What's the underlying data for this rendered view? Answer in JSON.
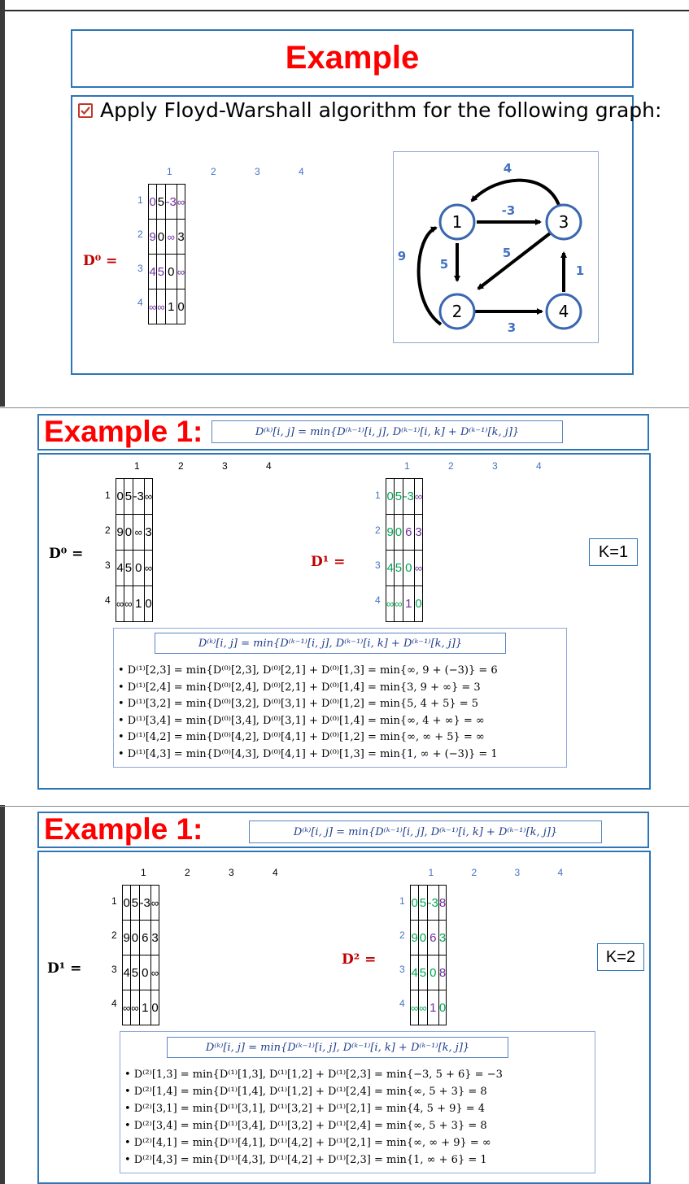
{
  "slide1": {
    "title": "Example",
    "task_text": "Apply Floyd-Warshall algorithm for the following graph:",
    "matrix_label": "D⁰ =",
    "col_labels": [
      "1",
      "2",
      "3",
      "4"
    ],
    "row_labels": [
      "1",
      "2",
      "3",
      "4"
    ],
    "matrix": [
      [
        "0",
        "5",
        "-3",
        "∞"
      ],
      [
        "9",
        "0",
        "∞",
        "3"
      ],
      [
        "4",
        "5",
        "0",
        "∞"
      ],
      [
        "∞",
        "∞",
        "1",
        "0"
      ]
    ],
    "graph": {
      "nodes": [
        "1",
        "2",
        "3",
        "4"
      ],
      "edges": [
        {
          "from": "3",
          "to": "1",
          "weight": "4"
        },
        {
          "from": "1",
          "to": "3",
          "weight": "-3"
        },
        {
          "from": "2",
          "to": "1",
          "weight": "9"
        },
        {
          "from": "1",
          "to": "2",
          "weight": "5"
        },
        {
          "from": "3",
          "to": "2",
          "weight": "5"
        },
        {
          "from": "4",
          "to": "3",
          "weight": "1"
        },
        {
          "from": "2",
          "to": "4",
          "weight": "3"
        }
      ]
    }
  },
  "formula": "D⁽ᵏ⁾[i, j] = min{D⁽ᵏ⁻¹⁾[i, j], D⁽ᵏ⁻¹⁾[i, k] + D⁽ᵏ⁻¹⁾[k, j]}",
  "slide2": {
    "title": "Example 1:",
    "left_label": "D⁰ =",
    "right_label": "D¹ =",
    "k_label": "K=1",
    "left_matrix": [
      [
        "0",
        "5",
        "-3",
        "∞"
      ],
      [
        "9",
        "0",
        "∞",
        "3"
      ],
      [
        "4",
        "5",
        "0",
        "∞"
      ],
      [
        "∞",
        "∞",
        "1",
        "0"
      ]
    ],
    "right_matrix": [
      [
        "0",
        "5",
        "-3",
        "∞"
      ],
      [
        "9",
        "0",
        "6",
        "3"
      ],
      [
        "4",
        "5",
        "0",
        "∞"
      ],
      [
        "∞",
        "∞",
        "1",
        "0"
      ]
    ],
    "steps": [
      "D⁽¹⁾[2,3] = min{D⁽⁰⁾[2,3], D⁽⁰⁾[2,1] + D⁽⁰⁾[1,3] = min{∞, 9 + (−3)} = 6",
      "D⁽¹⁾[2,4] = min{D⁽⁰⁾[2,4], D⁽⁰⁾[2,1] + D⁽⁰⁾[1,4] = min{3, 9 + ∞} = 3",
      "D⁽¹⁾[3,2] = min{D⁽⁰⁾[3,2], D⁽⁰⁾[3,1] + D⁽⁰⁾[1,2] = min{5, 4 + 5} = 5",
      "D⁽¹⁾[3,4] = min{D⁽⁰⁾[3,4], D⁽⁰⁾[3,1] + D⁽⁰⁾[1,4] = min{∞, 4 + ∞} = ∞",
      "D⁽¹⁾[4,2] = min{D⁽⁰⁾[4,2], D⁽⁰⁾[4,1] + D⁽⁰⁾[1,2] = min{∞, ∞ + 5} = ∞",
      "D⁽¹⁾[4,3] = min{D⁽⁰⁾[4,3], D⁽⁰⁾[4,1] + D⁽⁰⁾[1,3] = min{1, ∞ + (−3)} = 1"
    ]
  },
  "slide3": {
    "title": "Example 1:",
    "left_label": "D¹ =",
    "right_label": "D² =",
    "k_label": "K=2",
    "left_matrix": [
      [
        "0",
        "5",
        "-3",
        "∞"
      ],
      [
        "9",
        "0",
        "6",
        "3"
      ],
      [
        "4",
        "5",
        "0",
        "∞"
      ],
      [
        "∞",
        "∞",
        "1",
        "0"
      ]
    ],
    "right_matrix": [
      [
        "0",
        "5",
        "-3",
        "8"
      ],
      [
        "9",
        "0",
        "6",
        "3"
      ],
      [
        "4",
        "5",
        "0",
        "8"
      ],
      [
        "∞",
        "∞",
        "1",
        "0"
      ]
    ],
    "steps": [
      "D⁽²⁾[1,3] = min{D⁽¹⁾[1,3], D⁽¹⁾[1,2] + D⁽¹⁾[2,3] = min{−3, 5 + 6} = −3",
      "D⁽²⁾[1,4] = min{D⁽¹⁾[1,4], D⁽¹⁾[1,2] + D⁽¹⁾[2,4] = min{∞, 5 + 3} = 8",
      "D⁽²⁾[3,1] = min{D⁽¹⁾[3,1], D⁽¹⁾[3,2] + D⁽¹⁾[2,1] = min{4, 5 + 9} = 4",
      "D⁽²⁾[3,4] = min{D⁽¹⁾[3,4], D⁽¹⁾[3,2] + D⁽¹⁾[2,4] = min{∞, 5 + 3} = 8",
      "D⁽²⁾[4,1] = min{D⁽¹⁾[4,1], D⁽¹⁾[4,2] + D⁽¹⁾[2,1] = min{∞, ∞ + 9} = ∞",
      "D⁽²⁾[4,3] = min{D⁽¹⁾[4,3], D⁽¹⁾[4,2] + D⁽¹⁾[2,3] = min{1, ∞ + 6} = 1"
    ]
  },
  "colors": {
    "title": "#ff0000",
    "border": "#2e75b6",
    "d1_values": "#00a651",
    "d2_values": "#00a651",
    "formula": "#1f3f8f",
    "graph_label": "#4472c4"
  }
}
